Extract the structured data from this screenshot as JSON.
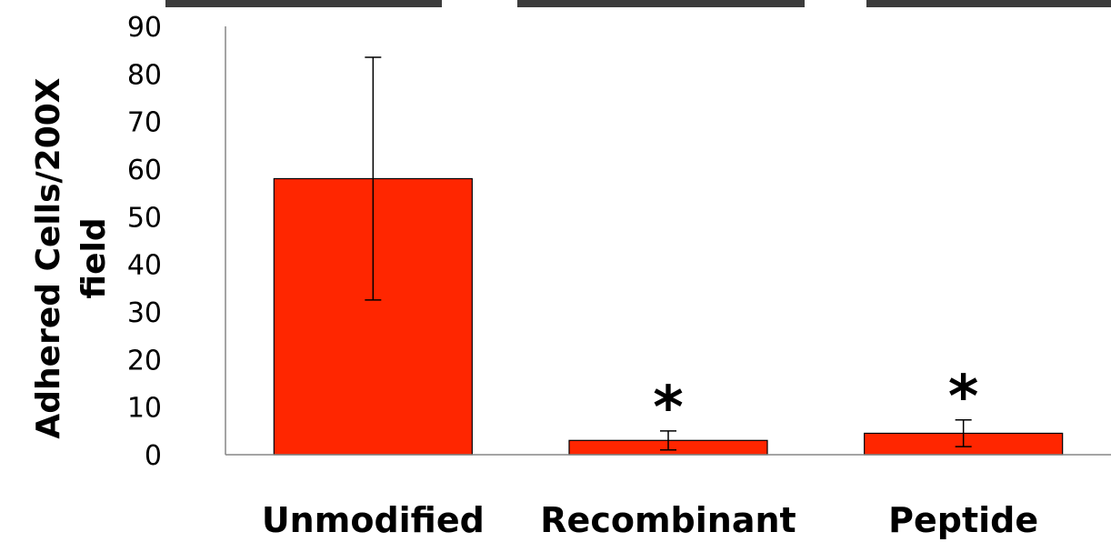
{
  "chart_data": {
    "type": "bar",
    "categories": [
      "Unmodified",
      "Recombinant",
      "Peptide"
    ],
    "values": [
      58,
      3,
      4.5
    ],
    "error": [
      25.5,
      2,
      2.8
    ],
    "significance": [
      "",
      "*",
      "*"
    ],
    "ylabel": [
      "Adhered Cells/200X",
      "field"
    ],
    "ylim": [
      0,
      90
    ],
    "yticks": [
      0,
      10,
      20,
      30,
      40,
      50,
      60,
      70,
      80,
      90
    ],
    "grid": false,
    "legend": "none",
    "bar_color": "#ff2600",
    "bar_edge_color": "#000000",
    "axis_color": "#868686",
    "photo_strip_color": "#3c3c3c"
  }
}
